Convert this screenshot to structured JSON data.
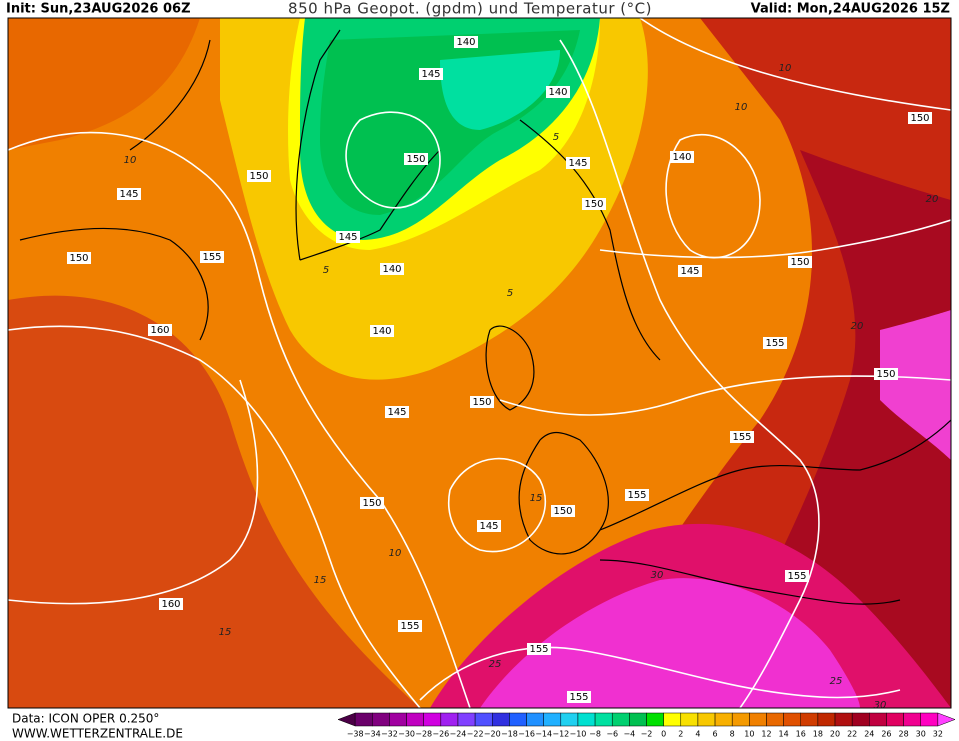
{
  "header": {
    "init": "Init: Sun,23AUG2026 06Z",
    "title": "850 hPa Geopot. (gpdm) und Temperatur (°C)",
    "valid": "Valid: Mon,24AUG2026 15Z"
  },
  "map": {
    "height_labels": [
      "140",
      "145",
      "140",
      "150",
      "145",
      "140",
      "150",
      "150",
      "145",
      "150",
      "145",
      "155",
      "150",
      "140",
      "145",
      "150",
      "140",
      "160",
      "155",
      "150",
      "145",
      "150",
      "155",
      "150",
      "155",
      "150",
      "145",
      "160",
      "155",
      "155",
      "155",
      "155"
    ],
    "temperature_labels": [
      "5",
      "5",
      "10",
      "10",
      "10",
      "15",
      "15",
      "20",
      "20",
      "25",
      "30",
      "30",
      "25",
      "10",
      "15",
      "5"
    ]
  },
  "colorbar": {
    "labels": [
      "−38",
      "−34",
      "−32",
      "−30",
      "−28",
      "−26",
      "−24",
      "−22",
      "−20",
      "−18",
      "−16",
      "−14",
      "−12",
      "−10",
      "−8",
      "−6",
      "−4",
      "−2",
      "0",
      "2",
      "4",
      "6",
      "8",
      "10",
      "12",
      "14",
      "16",
      "18",
      "20",
      "22",
      "24",
      "26",
      "28",
      "30",
      "32"
    ],
    "colors": [
      "#4b0046",
      "#6a006a",
      "#80007f",
      "#a000a0",
      "#c000c0",
      "#d000e0",
      "#a020f0",
      "#8040ff",
      "#5050ff",
      "#3030e0",
      "#2060ff",
      "#2090ff",
      "#20b0ff",
      "#20d0f0",
      "#00e0d0",
      "#00e0a0",
      "#00d070",
      "#00c050",
      "#00e000",
      "#ffff00",
      "#f8e000",
      "#f8c800",
      "#f8b000",
      "#f49a00",
      "#f08000",
      "#e86800",
      "#e05000",
      "#d03c00",
      "#c02800",
      "#b01010",
      "#a00020",
      "#c00040",
      "#e00060",
      "#f00090",
      "#ff00c0",
      "#ff40ff"
    ]
  },
  "footer": {
    "data": "Data: ICON OPER 0.250°",
    "site": "WWW.WETTERZENTRALE.DE"
  }
}
